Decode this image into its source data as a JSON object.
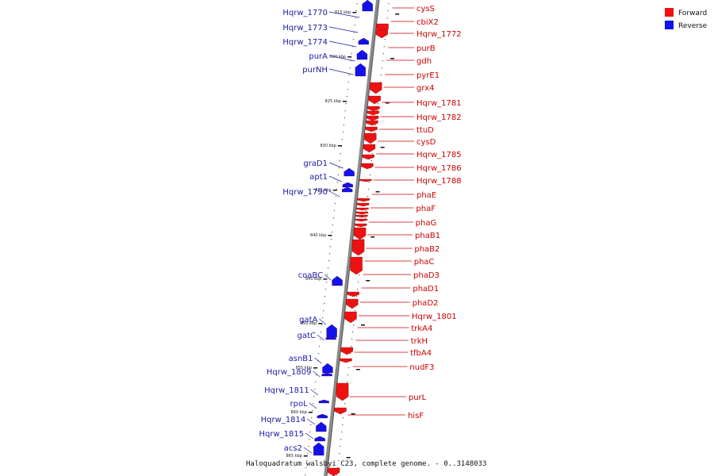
{
  "caption": "Haloquadratum walsbyi C23, complete genome. - 0..3148033",
  "legend": [
    {
      "label": "Forward",
      "color": "#ee1111"
    },
    {
      "label": "Reverse",
      "color": "#1111ee"
    }
  ],
  "ticks": [
    "815 kbp",
    "820 kbp",
    "825 kbp",
    "830 kbp",
    "835 kbp",
    "840 kbp",
    "845 kbp",
    "850 kbp",
    "855 kbp",
    "860 kbp",
    "865 kbp"
  ],
  "forward_genes": [
    "cysS",
    "cbiX2",
    "Hqrw_1772",
    "purB",
    "gdh",
    "pyrE1",
    "grx4",
    "Hqrw_1781",
    "Hqrw_1782",
    "ttuD",
    "cysD",
    "Hqrw_1785",
    "Hqrw_1786",
    "Hqrw_1788",
    "phaE",
    "phaF",
    "phaG",
    "phaB1",
    "phaB2",
    "phaC",
    "phaD3",
    "phaD1",
    "phaD2",
    "Hqrw_1801",
    "trkA4",
    "trkH",
    "tfbA4",
    "nudF3",
    "purL",
    "hisF"
  ],
  "reverse_genes": [
    "Hqrw_1770",
    "Hqrw_1773",
    "Hqrw_1774",
    "purA",
    "purNH",
    "graD1",
    "apt1",
    "Hqrw_1790",
    "coaBC",
    "gatA",
    "gatC",
    "asnB1",
    "Hqrw_1809",
    "Hqrw_1811",
    "rpoL",
    "Hqrw_1814",
    "Hqrw_1815",
    "acs2"
  ]
}
